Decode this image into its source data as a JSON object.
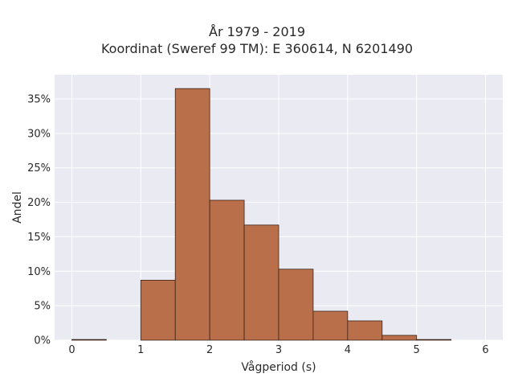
{
  "chart_data": {
    "type": "bar",
    "title_line1": "År 1979 - 2019",
    "title_line2": "Koordinat (Sweref 99 TM): E 360614, N 6201490",
    "xlabel": "Vågperiod (s)",
    "ylabel": "Andel",
    "xlim": [
      -0.25,
      6.25
    ],
    "ylim": [
      0,
      38.5
    ],
    "x_ticks": [
      0,
      1,
      2,
      3,
      4,
      5,
      6
    ],
    "x_tick_labels": [
      "0",
      "1",
      "2",
      "3",
      "4",
      "5",
      "6"
    ],
    "y_ticks": [
      0,
      5,
      10,
      15,
      20,
      25,
      30,
      35
    ],
    "y_tick_labels": [
      "0%",
      "5%",
      "10%",
      "15%",
      "20%",
      "25%",
      "30%",
      "35%"
    ],
    "grid": true,
    "bins": [
      {
        "x0": 0.0,
        "x1": 0.5,
        "value": 0.1
      },
      {
        "x0": 0.5,
        "x1": 1.0,
        "value": 0.0
      },
      {
        "x0": 1.0,
        "x1": 1.5,
        "value": 8.7
      },
      {
        "x0": 1.5,
        "x1": 2.0,
        "value": 36.5
      },
      {
        "x0": 2.0,
        "x1": 2.5,
        "value": 20.3
      },
      {
        "x0": 2.5,
        "x1": 3.0,
        "value": 16.7
      },
      {
        "x0": 3.0,
        "x1": 3.5,
        "value": 10.3
      },
      {
        "x0": 3.5,
        "x1": 4.0,
        "value": 4.2
      },
      {
        "x0": 4.0,
        "x1": 4.5,
        "value": 2.8
      },
      {
        "x0": 4.5,
        "x1": 5.0,
        "value": 0.7
      },
      {
        "x0": 5.0,
        "x1": 5.5,
        "value": 0.1
      }
    ],
    "colors": {
      "bar_fill": "#b9704a",
      "bar_edge": "#3a2418",
      "plot_bg": "#eaeaf2",
      "grid": "#ffffff"
    }
  }
}
